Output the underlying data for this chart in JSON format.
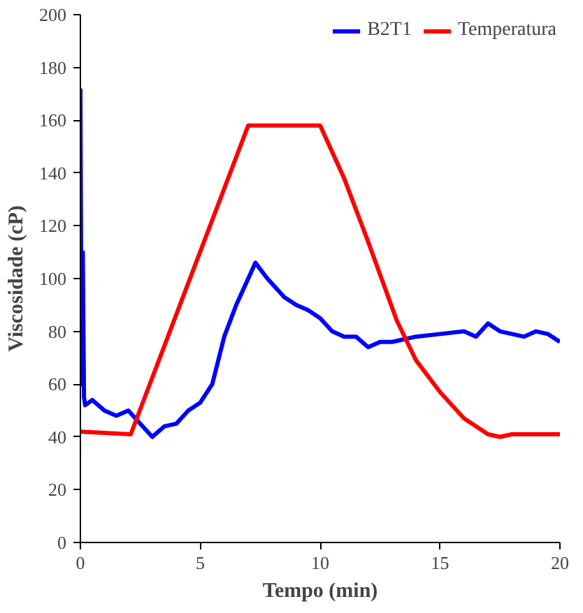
{
  "chart_data": {
    "type": "line",
    "xlabel": "Tempo (min)",
    "ylabel": "Viscosidade (cP)",
    "xlim": [
      0,
      20
    ],
    "ylim": [
      0,
      200
    ],
    "xticks": [
      0,
      5,
      10,
      15,
      20
    ],
    "yticks": [
      0,
      20,
      40,
      60,
      80,
      100,
      120,
      140,
      160,
      180,
      200
    ],
    "grid": false,
    "legend": "top right",
    "marker": "none",
    "line_style": "solid",
    "series": [
      {
        "name": "B2T1",
        "color": "#0000ff",
        "x": [
          0,
          0.05,
          0.1,
          0.15,
          0.2,
          0.5,
          1.0,
          1.5,
          2.0,
          2.5,
          3.0,
          3.5,
          4.0,
          4.5,
          5.0,
          5.5,
          6.0,
          6.5,
          7.0,
          7.3,
          7.8,
          8.5,
          9.0,
          9.5,
          10.0,
          10.5,
          11.0,
          11.5,
          12.0,
          12.5,
          13.0,
          14.0,
          15.0,
          16.0,
          16.5,
          17.0,
          17.5,
          18.0,
          18.5,
          19.0,
          19.5,
          20.0
        ],
        "values": [
          172,
          60,
          110,
          55,
          52,
          54,
          50,
          48,
          50,
          45,
          40,
          44,
          45,
          50,
          53,
          60,
          78,
          90,
          100,
          106,
          100,
          93,
          90,
          88,
          85,
          80,
          78,
          78,
          74,
          76,
          76,
          78,
          79,
          80,
          78,
          83,
          80,
          79,
          78,
          80,
          79,
          76
        ]
      },
      {
        "name": "Temperatura",
        "color": "#ff0000",
        "x": [
          0,
          2.1,
          7.0,
          10.0,
          11.0,
          12.0,
          13.2,
          14.0,
          15.0,
          16.0,
          17.0,
          17.5,
          18.0,
          19.0,
          20.0
        ],
        "values": [
          42,
          41,
          158,
          158,
          138,
          114,
          84,
          69,
          57,
          47,
          41,
          40,
          41,
          41,
          41
        ]
      }
    ]
  }
}
